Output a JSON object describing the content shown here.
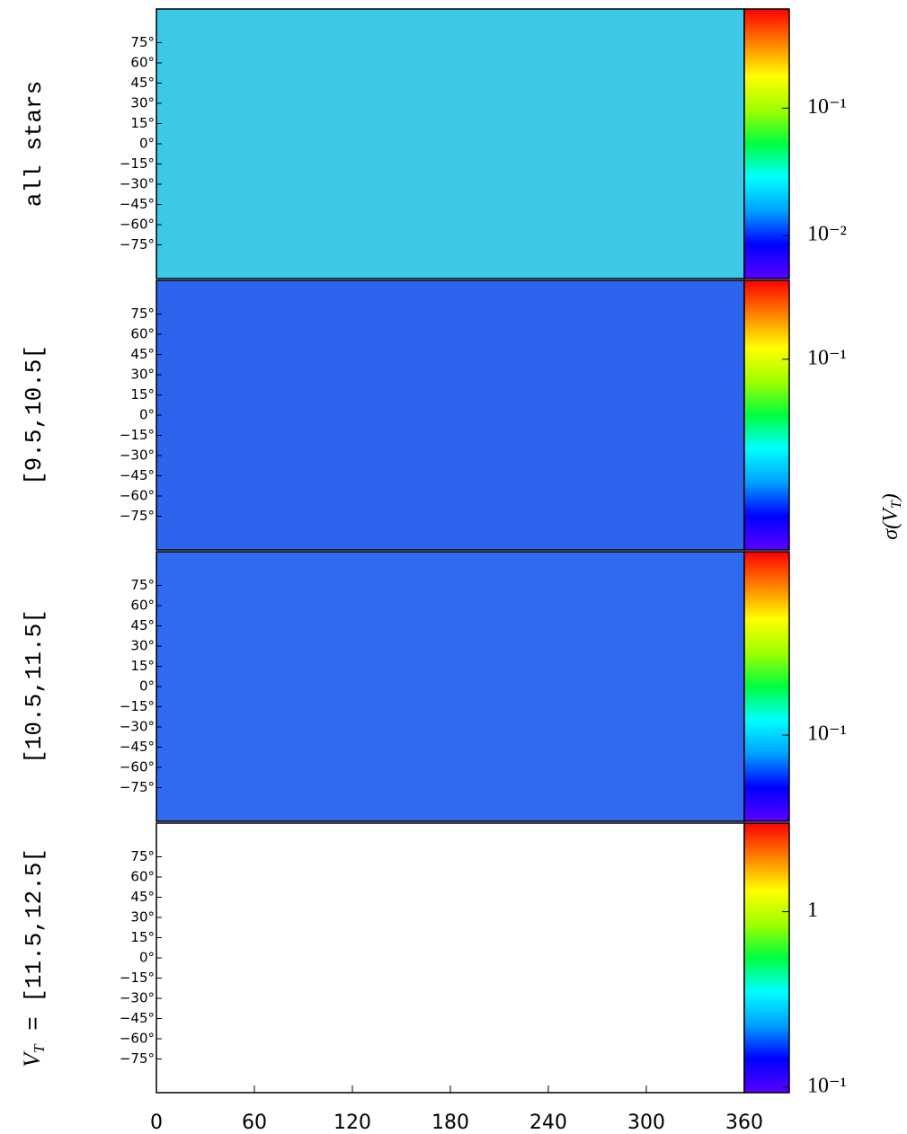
{
  "figure": {
    "colorbar_label": {
      "symbol": "σ(V",
      "subscript": "T",
      "close": ")"
    },
    "colormap": [
      "#5a00ff",
      "#0000ff",
      "#00a0ff",
      "#00ffff",
      "#00ff40",
      "#a0ff00",
      "#ffff00",
      "#ff8000",
      "#ff0000"
    ]
  },
  "chart_data": [
    {
      "type": "heatmap",
      "label": "all stars",
      "color": "#3cc8e6",
      "xlim": [
        0,
        360
      ],
      "ylim": [
        -100,
        100
      ],
      "yticks": [
        {
          "value": 75,
          "label": "75°"
        },
        {
          "value": 60,
          "label": "60°"
        },
        {
          "value": 45,
          "label": "45°"
        },
        {
          "value": 30,
          "label": "30°"
        },
        {
          "value": 15,
          "label": "15°"
        },
        {
          "value": 0,
          "label": "0°"
        },
        {
          "value": -15,
          "label": "−15°"
        },
        {
          "value": -30,
          "label": "−30°"
        },
        {
          "value": -45,
          "label": "−45°"
        },
        {
          "value": -60,
          "label": "−60°"
        },
        {
          "value": -75,
          "label": "−75°"
        }
      ],
      "colorbar": {
        "log": true,
        "clim": [
          0.0046,
          0.6
        ],
        "ticks": [
          {
            "value": 0.1,
            "label": "10⁻¹"
          },
          {
            "value": 0.01,
            "label": "10⁻²"
          }
        ]
      }
    },
    {
      "type": "heatmap",
      "label": "[9.5,10.5[",
      "color": "#2c64ee",
      "xlim": [
        0,
        360
      ],
      "ylim": [
        -100,
        100
      ],
      "yticks": [
        {
          "value": 75,
          "label": "75°"
        },
        {
          "value": 60,
          "label": "60°"
        },
        {
          "value": 45,
          "label": "45°"
        },
        {
          "value": 30,
          "label": "30°"
        },
        {
          "value": 15,
          "label": "15°"
        },
        {
          "value": 0,
          "label": "0°"
        },
        {
          "value": -15,
          "label": "−15°"
        },
        {
          "value": -30,
          "label": "−30°"
        },
        {
          "value": -45,
          "label": "−45°"
        },
        {
          "value": -60,
          "label": "−60°"
        },
        {
          "value": -75,
          "label": "−75°"
        }
      ],
      "colorbar": {
        "log": true,
        "clim": [
          0.0035,
          0.4
        ],
        "ticks": [
          {
            "value": 0.1,
            "label": "10⁻¹"
          }
        ]
      }
    },
    {
      "type": "heatmap",
      "label": "[10.5,11.5[",
      "color": "#2f6af0",
      "xlim": [
        0,
        360
      ],
      "ylim": [
        -100,
        100
      ],
      "yticks": [
        {
          "value": 75,
          "label": "75°"
        },
        {
          "value": 60,
          "label": "60°"
        },
        {
          "value": 45,
          "label": "45°"
        },
        {
          "value": 30,
          "label": "30°"
        },
        {
          "value": 15,
          "label": "15°"
        },
        {
          "value": 0,
          "label": "0°"
        },
        {
          "value": -15,
          "label": "−15°"
        },
        {
          "value": -30,
          "label": "−30°"
        },
        {
          "value": -45,
          "label": "−45°"
        },
        {
          "value": -60,
          "label": "−60°"
        },
        {
          "value": -75,
          "label": "−75°"
        }
      ],
      "colorbar": {
        "log": true,
        "clim": [
          0.028,
          1.5
        ],
        "ticks": [
          {
            "value": 0.1,
            "label": "10⁻¹"
          }
        ]
      }
    },
    {
      "type": "heatmap",
      "label_prefix": "V",
      "label_subscript": "T",
      "label": " = [11.5,12.5[",
      "color": "#ffffff",
      "xlim": [
        0,
        360
      ],
      "ylim": [
        -100,
        100
      ],
      "xticks": [
        0,
        60,
        120,
        180,
        240,
        300,
        360
      ],
      "yticks": [
        {
          "value": 75,
          "label": "75°"
        },
        {
          "value": 60,
          "label": "60°"
        },
        {
          "value": 45,
          "label": "45°"
        },
        {
          "value": 30,
          "label": "30°"
        },
        {
          "value": 15,
          "label": "15°"
        },
        {
          "value": 0,
          "label": "0°"
        },
        {
          "value": -15,
          "label": "−15°"
        },
        {
          "value": -30,
          "label": "−30°"
        },
        {
          "value": -45,
          "label": "−45°"
        },
        {
          "value": -60,
          "label": "−60°"
        },
        {
          "value": -75,
          "label": "−75°"
        }
      ],
      "colorbar": {
        "log": true,
        "clim": [
          0.093,
          3.2
        ],
        "ticks": [
          1,
          {
            "value": 0.1,
            "label": "10⁻¹"
          }
        ]
      }
    }
  ]
}
